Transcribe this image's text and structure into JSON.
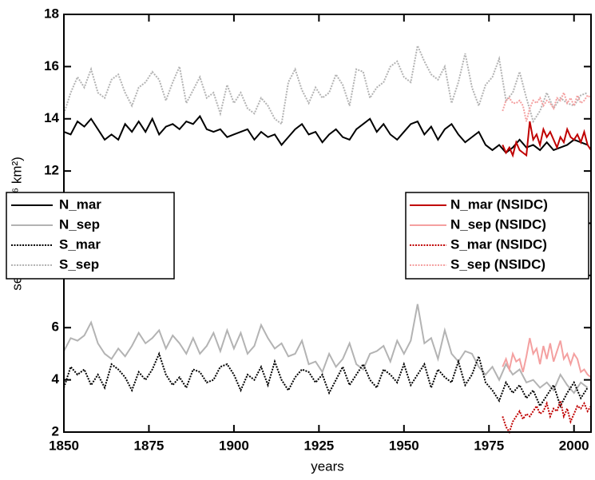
{
  "chart_data": {
    "type": "line",
    "xlabel": "years",
    "ylabel": "sea ice area (10⁶ km²)",
    "xlim": [
      1850,
      2005
    ],
    "ylim": [
      2,
      18
    ],
    "xticks": [
      1850,
      1875,
      1900,
      1925,
      1950,
      1975,
      2000
    ],
    "yticks": [
      2,
      4,
      6,
      8,
      10,
      12,
      14,
      16,
      18
    ],
    "x": [
      1850,
      1852,
      1854,
      1856,
      1858,
      1860,
      1862,
      1864,
      1866,
      1868,
      1870,
      1872,
      1874,
      1876,
      1878,
      1880,
      1882,
      1884,
      1886,
      1888,
      1890,
      1892,
      1894,
      1896,
      1898,
      1900,
      1902,
      1904,
      1906,
      1908,
      1910,
      1912,
      1914,
      1916,
      1918,
      1920,
      1922,
      1924,
      1926,
      1928,
      1930,
      1932,
      1934,
      1936,
      1938,
      1940,
      1942,
      1944,
      1946,
      1948,
      1950,
      1952,
      1954,
      1956,
      1958,
      1960,
      1962,
      1964,
      1966,
      1968,
      1970,
      1972,
      1974,
      1976,
      1978,
      1980,
      1982,
      1984,
      1986,
      1988,
      1990,
      1992,
      1994,
      1996,
      1998,
      2000,
      2002,
      2004
    ],
    "series": [
      {
        "name": "N_mar",
        "color": "#000000",
        "linestyle": "solid",
        "legend_loc": "center left",
        "values": [
          13.5,
          13.4,
          13.9,
          13.7,
          14.0,
          13.6,
          13.2,
          13.4,
          13.2,
          13.8,
          13.5,
          13.9,
          13.5,
          14.0,
          13.4,
          13.7,
          13.8,
          13.6,
          13.9,
          13.8,
          14.1,
          13.6,
          13.5,
          13.6,
          13.3,
          13.4,
          13.5,
          13.6,
          13.2,
          13.5,
          13.3,
          13.4,
          13.0,
          13.3,
          13.6,
          13.8,
          13.4,
          13.5,
          13.1,
          13.4,
          13.6,
          13.3,
          13.2,
          13.6,
          13.8,
          14.0,
          13.5,
          13.8,
          13.4,
          13.2,
          13.5,
          13.8,
          13.9,
          13.4,
          13.7,
          13.2,
          13.6,
          13.8,
          13.4,
          13.1,
          13.3,
          13.5,
          13.0,
          12.8,
          13.0,
          12.7,
          12.9,
          13.2,
          12.9,
          13.0,
          12.8,
          13.1,
          12.8,
          12.9,
          13.0,
          13.2,
          13.1,
          13.0
        ]
      },
      {
        "name": "N_sep",
        "color": "#b3b3b3",
        "linestyle": "solid",
        "legend_loc": "center left",
        "values": [
          5.1,
          5.6,
          5.5,
          5.7,
          6.2,
          5.4,
          5.0,
          4.8,
          5.2,
          4.9,
          5.3,
          5.8,
          5.4,
          5.6,
          5.9,
          5.2,
          5.7,
          5.4,
          5.0,
          5.6,
          5.0,
          5.3,
          5.8,
          5.1,
          5.9,
          5.2,
          5.8,
          5.0,
          5.3,
          6.1,
          5.6,
          5.2,
          5.4,
          4.9,
          5.0,
          5.5,
          4.6,
          4.7,
          4.3,
          5.0,
          4.5,
          4.8,
          5.4,
          4.6,
          4.4,
          5.0,
          5.1,
          5.3,
          4.7,
          5.5,
          5.0,
          5.5,
          6.9,
          5.4,
          5.6,
          4.8,
          5.9,
          5.0,
          4.7,
          5.1,
          5.0,
          4.5,
          4.2,
          4.5,
          4.0,
          4.6,
          4.2,
          4.4,
          3.9,
          4.0,
          3.7,
          3.9,
          3.6,
          4.2,
          3.8,
          3.5,
          3.9,
          3.7
        ]
      },
      {
        "name": "S_mar",
        "color": "#000000",
        "linestyle": "dotted",
        "legend_loc": "center left",
        "values": [
          3.7,
          4.5,
          4.2,
          4.4,
          3.8,
          4.2,
          3.7,
          4.6,
          4.4,
          4.1,
          3.6,
          4.3,
          4.0,
          4.4,
          5.0,
          4.2,
          3.8,
          4.1,
          3.7,
          4.4,
          4.3,
          3.9,
          4.0,
          4.5,
          4.6,
          4.2,
          3.6,
          4.2,
          4.0,
          4.5,
          3.8,
          4.7,
          4.0,
          3.6,
          4.1,
          4.4,
          4.3,
          3.9,
          4.2,
          3.5,
          4.0,
          4.5,
          3.8,
          4.2,
          4.6,
          4.0,
          3.7,
          4.4,
          4.2,
          3.9,
          4.6,
          3.8,
          4.2,
          4.6,
          3.7,
          4.4,
          4.1,
          3.9,
          4.7,
          3.8,
          4.2,
          4.9,
          3.9,
          3.6,
          3.2,
          3.9,
          3.5,
          3.8,
          3.3,
          3.6,
          3.0,
          3.4,
          3.8,
          3.0,
          3.5,
          3.9,
          3.3,
          3.7
        ]
      },
      {
        "name": "S_sep",
        "color": "#b3b3b3",
        "linestyle": "dotted",
        "legend_loc": "center left",
        "values": [
          14.2,
          15.0,
          15.6,
          15.2,
          15.9,
          15.0,
          14.8,
          15.5,
          15.7,
          15.0,
          14.5,
          15.2,
          15.4,
          15.8,
          15.5,
          14.7,
          15.4,
          16.0,
          14.6,
          15.1,
          15.6,
          14.8,
          15.0,
          14.2,
          15.3,
          14.6,
          15.0,
          14.4,
          14.2,
          14.8,
          14.5,
          14.0,
          13.8,
          15.4,
          15.9,
          15.1,
          14.6,
          15.2,
          14.8,
          15.0,
          15.7,
          15.3,
          14.5,
          15.9,
          15.8,
          14.8,
          15.2,
          15.4,
          16.0,
          16.2,
          15.6,
          15.4,
          16.8,
          16.2,
          15.7,
          15.5,
          16.0,
          14.6,
          15.4,
          16.5,
          15.2,
          14.5,
          15.3,
          15.6,
          16.3,
          14.7,
          15.0,
          15.8,
          14.8,
          13.9,
          14.3,
          15.0,
          14.4,
          14.8,
          14.6,
          14.5,
          14.9,
          15.0
        ]
      },
      {
        "name": "N_mar (NSIDC)",
        "color": "#c00000",
        "linestyle": "solid",
        "legend_loc": "center right",
        "x": [
          1979,
          1980,
          1981,
          1982,
          1983,
          1984,
          1985,
          1986,
          1987,
          1988,
          1989,
          1990,
          1991,
          1992,
          1993,
          1994,
          1995,
          1996,
          1997,
          1998,
          1999,
          2000,
          2001,
          2002,
          2003,
          2004,
          2005
        ],
        "values": [
          13.0,
          12.7,
          12.9,
          12.6,
          13.1,
          12.8,
          12.7,
          12.6,
          13.9,
          13.2,
          13.4,
          13.0,
          13.6,
          13.3,
          13.5,
          13.2,
          12.9,
          13.3,
          13.1,
          13.6,
          13.3,
          13.2,
          13.4,
          13.1,
          13.5,
          13.0,
          12.8
        ]
      },
      {
        "name": "N_sep (NSIDC)",
        "color": "#f4a0a0",
        "linestyle": "solid",
        "legend_loc": "center right",
        "x": [
          1979,
          1980,
          1981,
          1982,
          1983,
          1984,
          1985,
          1986,
          1987,
          1988,
          1989,
          1990,
          1991,
          1992,
          1993,
          1994,
          1995,
          1996,
          1997,
          1998,
          1999,
          2000,
          2001,
          2002,
          2003,
          2004,
          2005
        ],
        "values": [
          4.5,
          4.8,
          4.4,
          5.0,
          4.7,
          4.8,
          4.3,
          4.9,
          5.6,
          5.0,
          5.2,
          4.6,
          5.3,
          4.8,
          5.4,
          4.7,
          5.1,
          5.5,
          4.8,
          5.0,
          4.6,
          5.0,
          4.8,
          4.3,
          4.4,
          4.2,
          4.1
        ]
      },
      {
        "name": "S_mar (NSIDC)",
        "color": "#c00000",
        "linestyle": "dotted",
        "legend_loc": "center right",
        "x": [
          1979,
          1980,
          1981,
          1982,
          1983,
          1984,
          1985,
          1986,
          1987,
          1988,
          1989,
          1990,
          1991,
          1992,
          1993,
          1994,
          1995,
          1996,
          1997,
          1998,
          1999,
          2000,
          2001,
          2002,
          2003,
          2004,
          2005
        ],
        "values": [
          2.6,
          2.2,
          2.0,
          2.4,
          2.6,
          2.8,
          2.5,
          2.7,
          2.6,
          2.8,
          3.0,
          2.7,
          2.8,
          3.1,
          2.6,
          2.9,
          2.8,
          3.2,
          2.6,
          2.9,
          2.4,
          2.7,
          3.0,
          2.9,
          3.1,
          2.8,
          3.0
        ]
      },
      {
        "name": "S_sep (NSIDC)",
        "color": "#f4a0a0",
        "linestyle": "dotted",
        "legend_loc": "center right",
        "x": [
          1979,
          1980,
          1981,
          1982,
          1983,
          1984,
          1985,
          1986,
          1987,
          1988,
          1989,
          1990,
          1991,
          1992,
          1993,
          1994,
          1995,
          1996,
          1997,
          1998,
          1999,
          2000,
          2001,
          2002,
          2003,
          2004,
          2005
        ],
        "values": [
          14.3,
          14.7,
          14.8,
          14.6,
          14.6,
          14.7,
          14.5,
          13.9,
          14.4,
          14.7,
          14.6,
          14.8,
          14.5,
          14.7,
          14.6,
          14.4,
          14.8,
          14.7,
          15.0,
          14.6,
          14.8,
          14.5,
          14.9,
          14.6,
          14.7,
          14.9,
          14.8
        ]
      }
    ]
  }
}
